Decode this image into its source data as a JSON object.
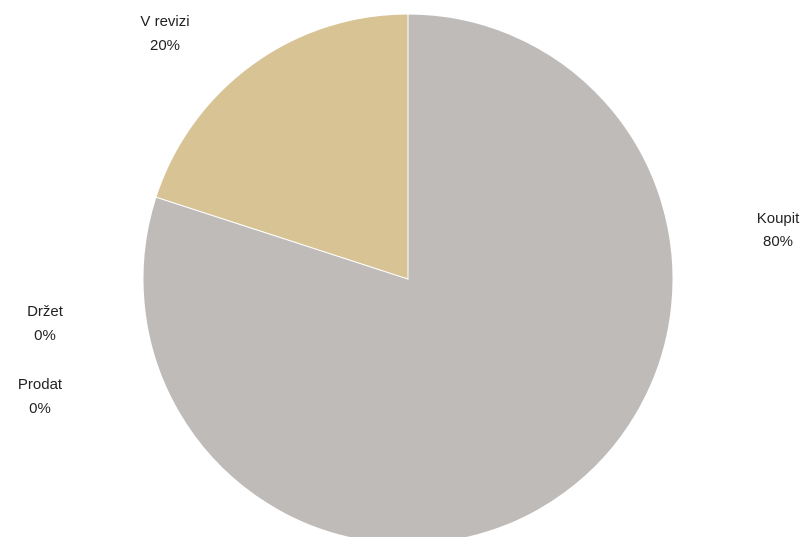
{
  "chart_data": {
    "type": "pie",
    "title": "",
    "start_angle_deg": 0,
    "direction": "clockwise",
    "slices": [
      {
        "label": "Koupit",
        "value": 80,
        "percent_label": "80%",
        "color": "#bfbbb9"
      },
      {
        "label": "Držet",
        "value": 0,
        "percent_label": "0%",
        "color": "#a8a39f"
      },
      {
        "label": "Prodat",
        "value": 0,
        "percent_label": "0%",
        "color": "#8f8a86"
      },
      {
        "label": "V revizi",
        "value": 20,
        "percent_label": "20%",
        "color": "#d7c394"
      }
    ],
    "legend": "none",
    "data_labels": "outside"
  }
}
